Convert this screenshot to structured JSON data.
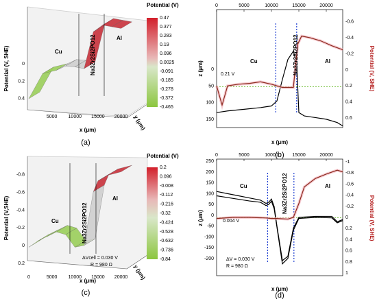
{
  "chart_data": [
    {
      "panel": "(a)",
      "type": "surface3d",
      "ylabel": "Potential (V, SHE)",
      "xlabel": "x (μm)",
      "zlabel": "y (μm)",
      "x_ticks": [
        "5000",
        "10000",
        "15000",
        "20000"
      ],
      "y_ticks": [
        "0",
        "0.2",
        "0.4"
      ],
      "colorbar": {
        "title": "Potential (V)",
        "ticks": [
          "0.47",
          "0.377",
          "0.283",
          "0.19",
          "0.096",
          "0.0025",
          "-0.091",
          "-0.185",
          "-0.278",
          "-0.372",
          "-0.465"
        ]
      },
      "regions": [
        "Cu",
        "Na3Zr2Si2PO12",
        "Al"
      ],
      "x": [
        0,
        3000,
        6000,
        8000,
        10000,
        12000,
        14000,
        16000,
        18000,
        20000
      ],
      "potential": [
        0.42,
        0.12,
        0.08,
        0.03,
        0.04,
        0.06,
        -0.38,
        -0.46,
        -0.44,
        -0.42
      ]
    },
    {
      "panel": "(b)",
      "type": "line",
      "xlabel": "x (μm)",
      "ylabel": "z (μm)",
      "y2label": "Potential (V, SHE)",
      "x_ticks": [
        "0",
        "5000",
        "10000",
        "15000",
        "20000"
      ],
      "y_ticks": [
        "0",
        "50",
        "100",
        "150"
      ],
      "y2_ticks": [
        "-0.6",
        "-0.4",
        "-0.2",
        "0",
        "0.2",
        "0.4",
        "0.6"
      ],
      "xlim": [
        0,
        23000
      ],
      "regions": [
        "Cu",
        "Na3Zr2Si2PO12",
        "Al"
      ],
      "annotations": [
        "0.21 V"
      ],
      "series": [
        {
          "axis": "z",
          "x": [
            0,
            2000,
            5000,
            8000,
            10000,
            11000,
            12000,
            13000,
            14000,
            14600,
            15000,
            16000,
            18000,
            20000,
            22000,
            23000
          ],
          "y": [
            130,
            125,
            120,
            115,
            110,
            95,
            30,
            -30,
            -55,
            -20,
            130,
            140,
            145,
            150,
            160,
            170
          ]
        },
        {
          "axis": "potential",
          "x": [
            0,
            1000,
            2000,
            4000,
            6000,
            8000,
            10000,
            11000,
            12000,
            14000,
            14800,
            15500,
            17000,
            19000,
            21000,
            23000
          ],
          "y": [
            0.2,
            0.44,
            0.2,
            0.18,
            0.17,
            0.15,
            0.18,
            0.2,
            0.22,
            0.22,
            -0.32,
            -0.42,
            -0.4,
            -0.36,
            -0.3,
            -0.25
          ]
        }
      ]
    },
    {
      "panel": "(c)",
      "type": "surface3d",
      "ylabel": "Potential (V,SHE)",
      "xlabel": "x (μm)",
      "zlabel": "y (μm)",
      "x_ticks": [
        "0",
        "5000",
        "10000",
        "15000",
        "20000"
      ],
      "y_ticks": [
        "-0.8",
        "-0.6",
        "-0.4",
        "-0.2",
        "0",
        "0.2"
      ],
      "colorbar": {
        "title": "Potential (V)",
        "ticks": [
          "0.2",
          "0.096",
          "-0.008",
          "-0.112",
          "-0.216",
          "-0.32",
          "-0.424",
          "-0.528",
          "-0.632",
          "-0.736",
          "-0.84"
        ]
      },
      "regions": [
        "Cu",
        "Na3Zr2Si2PO12",
        "Al"
      ],
      "annotations": [
        "ΔVcell = 0.030 V",
        "R = 980 Ω"
      ],
      "x": [
        0,
        2000,
        4000,
        6000,
        8000,
        10000,
        12000,
        14000,
        15000,
        17000,
        20000
      ],
      "potential": [
        0.02,
        -0.05,
        -0.1,
        -0.15,
        -0.12,
        0.02,
        0.0,
        -0.6,
        -0.72,
        -0.78,
        -0.82
      ]
    },
    {
      "panel": "(d)",
      "type": "line",
      "xlabel": "x (μm)",
      "ylabel": "z (μm)",
      "y2label": "Potential (V, SHE)",
      "x_ticks": [
        "0",
        "5000",
        "10000",
        "15000",
        "20000"
      ],
      "y_ticks": [
        "-200",
        "-150",
        "-100",
        "-50",
        "0",
        "50",
        "100",
        "150",
        "200",
        "250"
      ],
      "y2_ticks": [
        "-1",
        "-0.8",
        "-0.6",
        "-0.4",
        "-0.2",
        "0",
        "0.2",
        "0.4",
        "0.6",
        "0.8",
        "1"
      ],
      "xlim": [
        0,
        23000
      ],
      "regions": [
        "Cu",
        "Na3Zr2Si2PO12",
        "Al"
      ],
      "annotations": [
        "0.004 V",
        "ΔV = 0.030 V",
        "R = 980 Ω"
      ],
      "series": [
        {
          "axis": "z",
          "x": [
            0,
            2000,
            4000,
            6000,
            8000,
            9000,
            9500,
            10000,
            10500,
            11000,
            12000,
            13000,
            14000,
            15000,
            18000,
            21000,
            22000,
            23000
          ],
          "y": [
            110,
            100,
            90,
            80,
            70,
            55,
            60,
            75,
            40,
            -50,
            -210,
            -190,
            -60,
            -10,
            -5,
            -5,
            -30,
            -20
          ]
        },
        {
          "axis": "z",
          "x": [
            0,
            2000,
            4000,
            6000,
            8000,
            9000,
            9500,
            10000,
            10500,
            11000,
            12000,
            13000,
            14000,
            15000,
            18000,
            21000,
            22000,
            23000
          ],
          "y": [
            90,
            82,
            74,
            66,
            60,
            45,
            50,
            65,
            30,
            -55,
            -225,
            -200,
            -70,
            -15,
            -10,
            -12,
            -35,
            -25
          ]
        },
        {
          "axis": "potential",
          "x": [
            0,
            3000,
            6000,
            9000,
            10000,
            11000,
            13000,
            14000,
            15000,
            16000,
            18000,
            20000,
            22000,
            23000
          ],
          "y": [
            0.02,
            0.0,
            0.0,
            0.01,
            0.02,
            0.02,
            0.03,
            0.0,
            -0.25,
            -0.55,
            -0.7,
            -0.78,
            -0.85,
            -0.82
          ]
        }
      ]
    }
  ]
}
